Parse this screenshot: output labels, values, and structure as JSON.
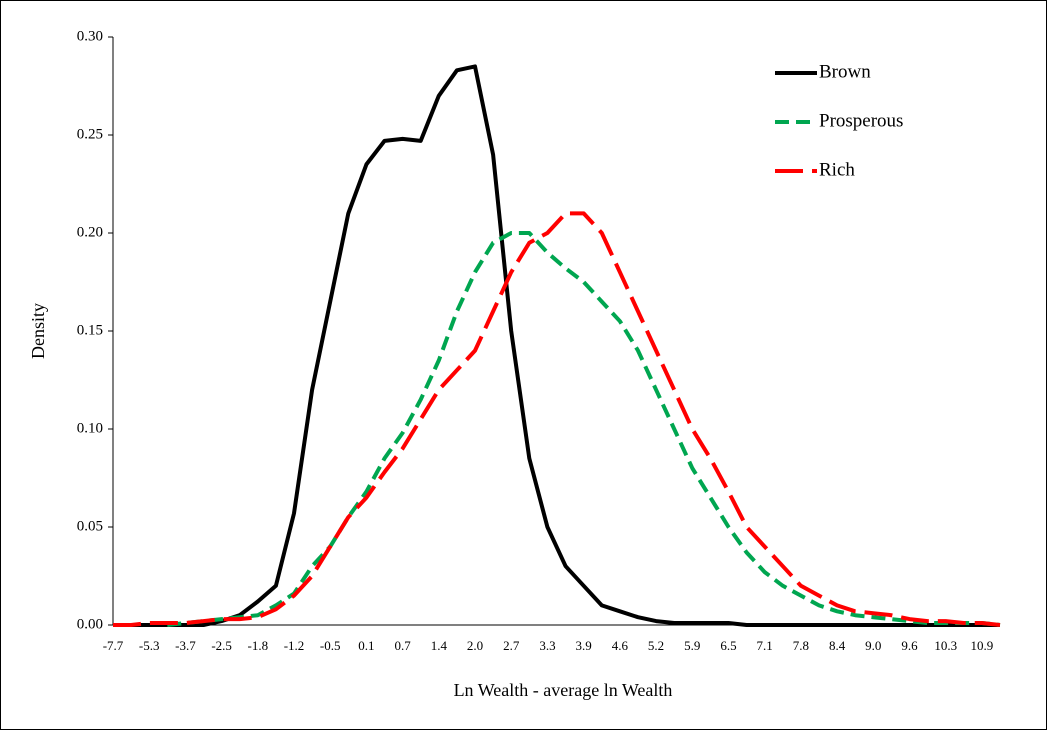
{
  "chart_data": {
    "type": "line",
    "x_label": "Ln Wealth - average ln Wealth",
    "y_label": "Density",
    "categories": [
      "-7.7",
      null,
      "-5.3",
      null,
      "-3.7",
      null,
      "-2.5",
      null,
      "-1.8",
      null,
      "-1.2",
      null,
      "-0.5",
      null,
      "0.1",
      null,
      "0.7",
      null,
      "1.4",
      null,
      "2.0",
      null,
      "2.7",
      null,
      "3.3",
      null,
      "3.9",
      null,
      "4.6",
      null,
      "5.2",
      null,
      "5.9",
      null,
      "6.5",
      null,
      "7.1",
      null,
      "7.8",
      null,
      "8.4",
      null,
      "9.0",
      null,
      "9.6",
      null,
      "10.3",
      null,
      "10.9",
      null
    ],
    "series": [
      {
        "name": "Brown",
        "color": "#000000",
        "dash": "solid",
        "values": [
          0,
          0,
          0,
          0,
          0,
          0,
          0.002,
          0.005,
          0.012,
          0.02,
          0.057,
          0.12,
          0.165,
          0.21,
          0.235,
          0.247,
          0.248,
          0.247,
          0.27,
          0.283,
          0.285,
          0.24,
          0.15,
          0.085,
          0.05,
          0.03,
          0.02,
          0.01,
          0.007,
          0.004,
          0.002,
          0.001,
          0.001,
          0.001,
          0.001,
          0,
          0,
          0,
          0,
          0,
          0,
          0,
          0,
          0,
          0,
          0,
          0,
          0,
          0,
          0
        ]
      },
      {
        "name": "Prosperous",
        "color": "#00a650",
        "dash": "short",
        "values": [
          null,
          null,
          null,
          0,
          0.001,
          0.002,
          0.003,
          0.004,
          0.005,
          0.01,
          0.016,
          0.03,
          0.04,
          0.055,
          0.068,
          0.085,
          0.098,
          0.115,
          0.135,
          0.16,
          0.18,
          0.195,
          0.2,
          0.2,
          0.19,
          0.182,
          0.175,
          0.165,
          0.155,
          0.14,
          0.12,
          0.1,
          0.08,
          0.065,
          0.05,
          0.037,
          0.027,
          0.02,
          0.015,
          0.01,
          0.007,
          0.005,
          0.004,
          0.003,
          0.002,
          0.001,
          0.001,
          0.001,
          0.001,
          0
        ]
      },
      {
        "name": "Rich",
        "color": "#ff0000",
        "dash": "long",
        "values": [
          0,
          0,
          0.001,
          0.001,
          0.001,
          0.002,
          0.003,
          0.003,
          0.004,
          0.008,
          0.015,
          0.025,
          0.04,
          0.055,
          0.065,
          0.078,
          0.09,
          0.105,
          0.12,
          0.13,
          0.14,
          0.16,
          0.18,
          0.195,
          0.2,
          0.21,
          0.21,
          0.2,
          0.18,
          0.16,
          0.14,
          0.12,
          0.1,
          0.085,
          0.068,
          0.05,
          0.04,
          0.03,
          0.02,
          0.015,
          0.01,
          0.007,
          0.006,
          0.005,
          0.003,
          0.002,
          0.002,
          0.001,
          0.001,
          0
        ]
      }
    ],
    "ylim": [
      0,
      0.3
    ],
    "yticks": [
      {
        "value": 0,
        "label": "0.00"
      },
      0.05,
      {
        "value": 0.1,
        "label": "0.10"
      },
      0.15,
      {
        "value": 0.2,
        "label": "0.20"
      },
      0.25,
      {
        "value": 0.3,
        "label": "0.30"
      }
    ],
    "grid": false,
    "legend": "top-right"
  }
}
